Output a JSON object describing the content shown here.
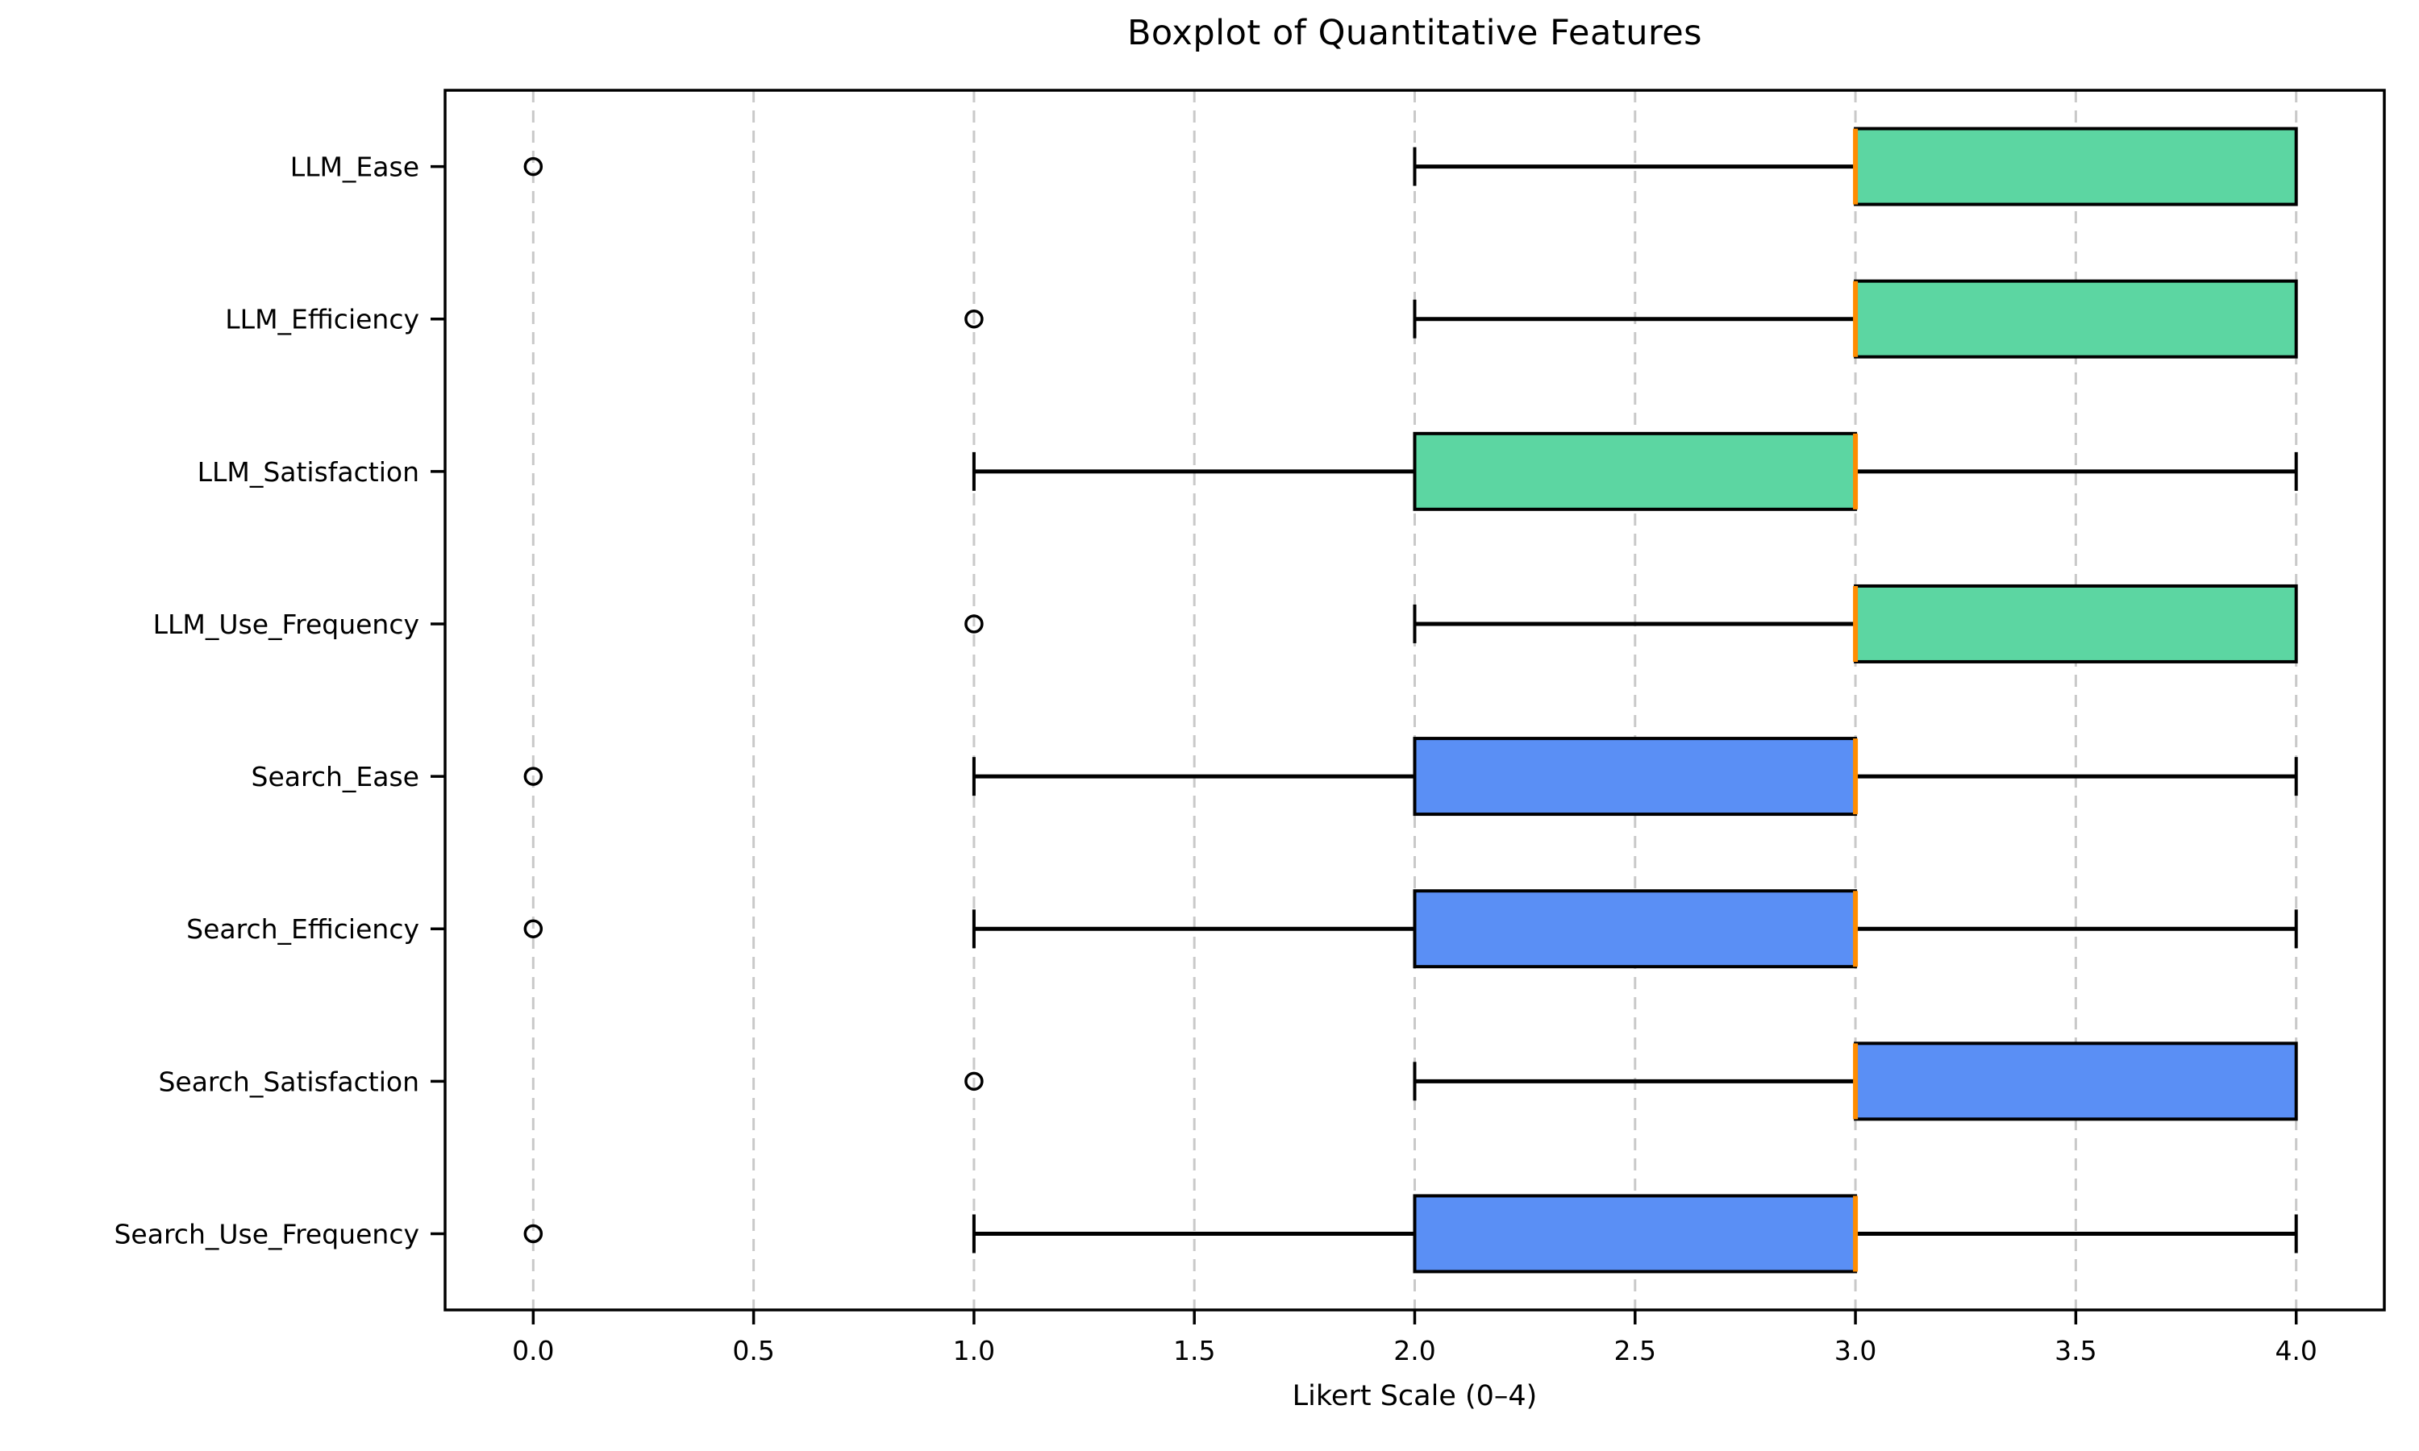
{
  "chart_data": {
    "type": "boxplot",
    "orientation": "horizontal",
    "title": "Boxplot of Quantitative Features",
    "xlabel": "Likert Scale (0–4)",
    "xlim": [
      -0.2,
      4.2
    ],
    "grid": {
      "axis": "x",
      "style": "dashed",
      "color": "#c9c9c9"
    },
    "legend": "none",
    "colors": {
      "llm_box_fill": "#5cd6a2",
      "search_box_fill": "#5a8ff5",
      "median_line": "#ff8c00",
      "box_edge": "#000000",
      "whisker": "#000000",
      "flier_edge": "#000000",
      "spine": "#000000",
      "gridline": "#c9c9c9"
    },
    "x_ticks": [
      {
        "value": 0.0,
        "label": "0.0"
      },
      {
        "value": 0.5,
        "label": "0.5"
      },
      {
        "value": 1.0,
        "label": "1.0"
      },
      {
        "value": 1.5,
        "label": "1.5"
      },
      {
        "value": 2.0,
        "label": "2.0"
      },
      {
        "value": 2.5,
        "label": "2.5"
      },
      {
        "value": 3.0,
        "label": "3.0"
      },
      {
        "value": 3.5,
        "label": "3.5"
      },
      {
        "value": 4.0,
        "label": "4.0"
      }
    ],
    "categories": [
      "LLM_Ease",
      "LLM_Efficiency",
      "LLM_Satisfaction",
      "LLM_Use_Frequency",
      "Search_Ease",
      "Search_Efficiency",
      "Search_Satisfaction",
      "Search_Use_Frequency"
    ],
    "boxes": [
      {
        "label": "LLM_Ease",
        "group": "LLM",
        "whislo": 2,
        "q1": 3,
        "med": 3,
        "q3": 4,
        "whishi": 4,
        "fliers": [
          0
        ],
        "fill": "#5cd6a2"
      },
      {
        "label": "LLM_Efficiency",
        "group": "LLM",
        "whislo": 2,
        "q1": 3,
        "med": 3,
        "q3": 4,
        "whishi": 4,
        "fliers": [
          1
        ],
        "fill": "#5cd6a2"
      },
      {
        "label": "LLM_Satisfaction",
        "group": "LLM",
        "whislo": 1,
        "q1": 2,
        "med": 3,
        "q3": 3,
        "whishi": 4,
        "fliers": [],
        "fill": "#5cd6a2"
      },
      {
        "label": "LLM_Use_Frequency",
        "group": "LLM",
        "whislo": 2,
        "q1": 3,
        "med": 3,
        "q3": 4,
        "whishi": 4,
        "fliers": [
          1
        ],
        "fill": "#5cd6a2"
      },
      {
        "label": "Search_Ease",
        "group": "Search",
        "whislo": 1,
        "q1": 2,
        "med": 3,
        "q3": 3,
        "whishi": 4,
        "fliers": [
          0
        ],
        "fill": "#5a8ff5"
      },
      {
        "label": "Search_Efficiency",
        "group": "Search",
        "whislo": 1,
        "q1": 2,
        "med": 3,
        "q3": 3,
        "whishi": 4,
        "fliers": [
          0
        ],
        "fill": "#5a8ff5"
      },
      {
        "label": "Search_Satisfaction",
        "group": "Search",
        "whislo": 2,
        "q1": 3,
        "med": 3,
        "q3": 4,
        "whishi": 4,
        "fliers": [
          1
        ],
        "fill": "#5a8ff5"
      },
      {
        "label": "Search_Use_Frequency",
        "group": "Search",
        "whislo": 1,
        "q1": 2,
        "med": 3,
        "q3": 3,
        "whishi": 4,
        "fliers": [
          0
        ],
        "fill": "#5a8ff5"
      }
    ]
  }
}
